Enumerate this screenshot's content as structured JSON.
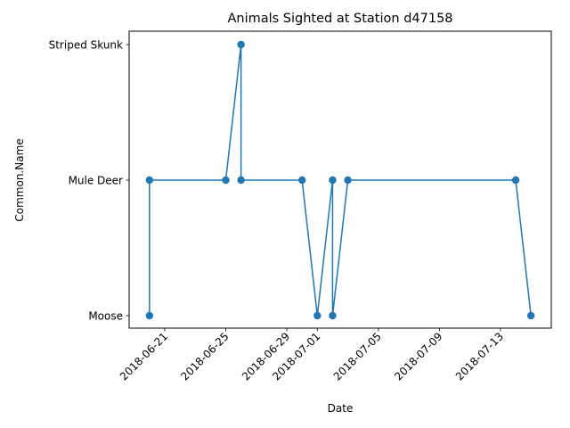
{
  "chart_data": {
    "type": "line",
    "title": "Animals Sighted at Station d47158",
    "xlabel": "Date",
    "ylabel": "Common.Name",
    "y_categories": [
      "Moose",
      "Mule Deer",
      "Striped Skunk"
    ],
    "x_ticks": [
      "2018-06-21",
      "2018-06-25",
      "2018-06-29",
      "2018-07-01",
      "2018-07-05",
      "2018-07-09",
      "2018-07-13"
    ],
    "xlim": [
      "2018-06-18 16:00",
      "2018-07-16 08:00"
    ],
    "grid": false,
    "series": [
      {
        "color": "#1f77b4",
        "marker": "circle",
        "points": [
          {
            "x": "2018-06-20",
            "y": "Moose"
          },
          {
            "x": "2018-06-20",
            "y": "Mule Deer"
          },
          {
            "x": "2018-06-25",
            "y": "Mule Deer"
          },
          {
            "x": "2018-06-26",
            "y": "Striped Skunk"
          },
          {
            "x": "2018-06-26",
            "y": "Mule Deer"
          },
          {
            "x": "2018-06-30",
            "y": "Mule Deer"
          },
          {
            "x": "2018-07-01",
            "y": "Moose"
          },
          {
            "x": "2018-07-02",
            "y": "Mule Deer"
          },
          {
            "x": "2018-07-02",
            "y": "Moose"
          },
          {
            "x": "2018-07-03",
            "y": "Mule Deer"
          },
          {
            "x": "2018-07-14",
            "y": "Mule Deer"
          },
          {
            "x": "2018-07-15",
            "y": "Moose"
          }
        ]
      }
    ]
  }
}
